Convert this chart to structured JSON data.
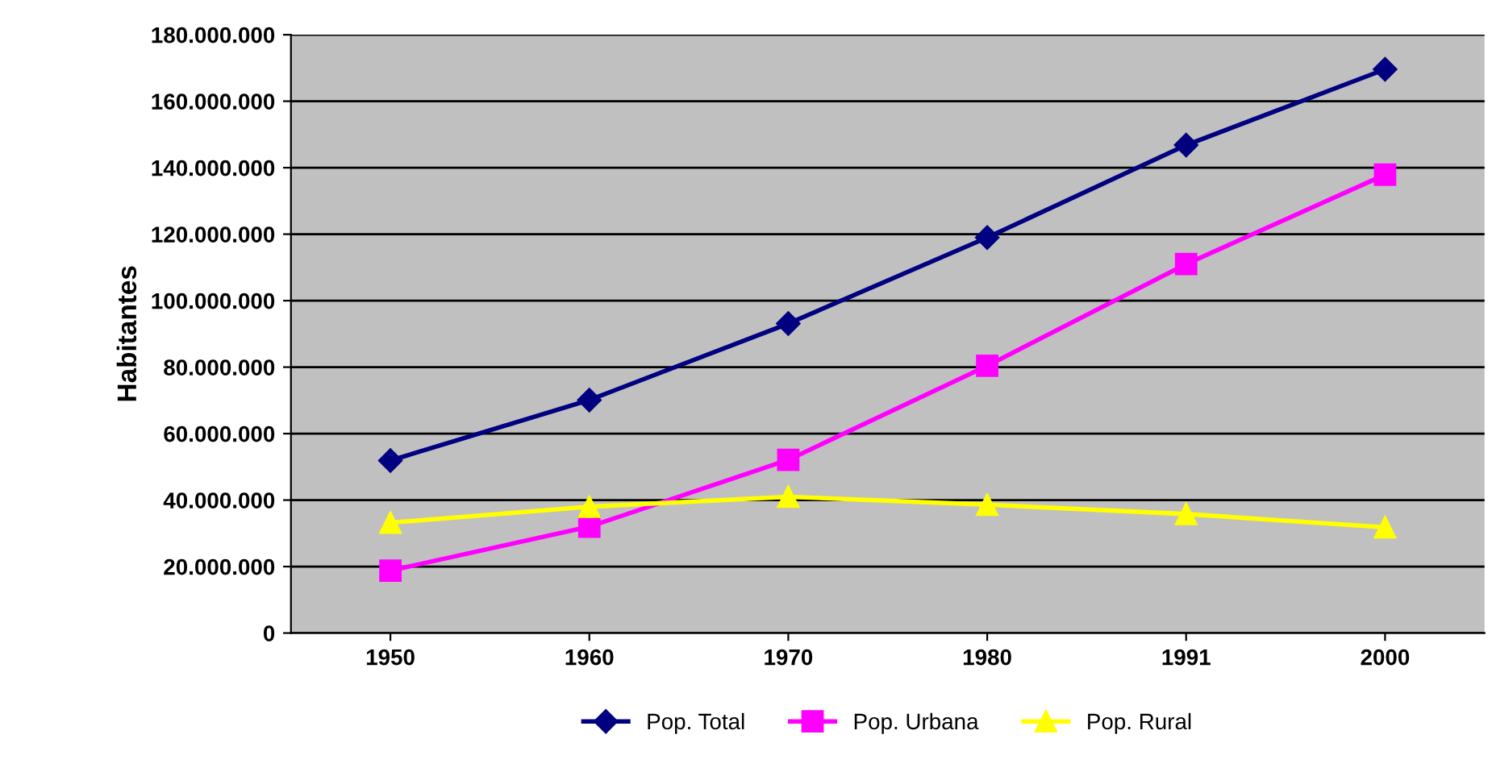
{
  "chart_data": {
    "type": "line",
    "ylabel": "Habitantes",
    "categories": [
      "1950",
      "1960",
      "1970",
      "1980",
      "1991",
      "2000"
    ],
    "series": [
      {
        "name": "Pop. Total",
        "color": "#000080",
        "marker": "diamond",
        "values": [
          51900000,
          70100000,
          93100000,
          119000000,
          146800000,
          169600000
        ]
      },
      {
        "name": "Pop. Urbana",
        "color": "#ff00ff",
        "marker": "square",
        "values": [
          18800000,
          32000000,
          52100000,
          80400000,
          111000000,
          137900000
        ]
      },
      {
        "name": "Pop. Rural",
        "color": "#ffff00",
        "marker": "triangle",
        "values": [
          33200000,
          38000000,
          41000000,
          38600000,
          35800000,
          31800000
        ]
      }
    ],
    "ylim": [
      0,
      180000000
    ],
    "yticks": [
      {
        "value": 0,
        "label": "0"
      },
      {
        "value": 20000000,
        "label": "20.000.000"
      },
      {
        "value": 40000000,
        "label": "40.000.000"
      },
      {
        "value": 60000000,
        "label": "60.000.000"
      },
      {
        "value": 80000000,
        "label": "80.000.000"
      },
      {
        "value": 100000000,
        "label": "100.000.000"
      },
      {
        "value": 120000000,
        "label": "120.000.000"
      },
      {
        "value": 140000000,
        "label": "140.000.000"
      },
      {
        "value": 160000000,
        "label": "160.000.000"
      },
      {
        "value": 180000000,
        "label": "180.000.000"
      }
    ],
    "grid": "y",
    "legend": "bottom"
  }
}
